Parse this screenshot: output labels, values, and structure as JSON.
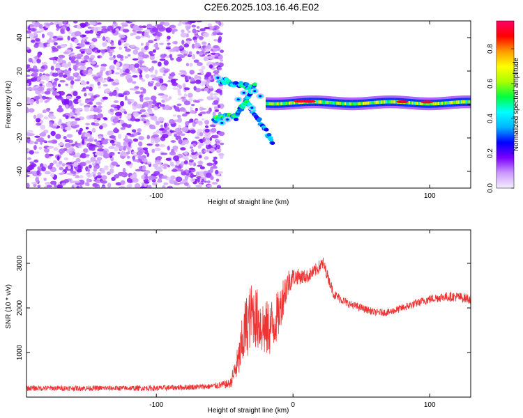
{
  "title": "C2E6.2025.103.16.46.E02",
  "chart_data": [
    {
      "type": "heatmap",
      "xlabel": "Height of straight line (km)",
      "ylabel": "Frequency (Hz)",
      "xlim": [
        -195,
        130
      ],
      "ylim": [
        -50,
        50
      ],
      "xticks": [
        -100,
        0,
        100
      ],
      "xtick_labels": [
        "-100",
        "",
        "100"
      ],
      "yticks": [
        -40,
        -20,
        0,
        20,
        40
      ],
      "ytick_labels": [
        "-40",
        "-20",
        "0",
        "20",
        "40"
      ],
      "colorbar": {
        "label": "Normalized spectral amplitude",
        "range": [
          0,
          0.96
        ],
        "ticks": [
          0,
          0.2,
          0.4,
          0.6,
          0.8
        ],
        "tick_labels": [
          "0.0",
          "0.2",
          "0.4",
          "0.6",
          "0.8"
        ],
        "colormap": [
          "#f4eeff",
          "#cc99ff",
          "#7a00ff",
          "#0000ff",
          "#00b4ff",
          "#00ffff",
          "#00ff40",
          "#aaff00",
          "#ffff00",
          "#ff9900",
          "#ff0000",
          "#ff0066"
        ]
      },
      "regions": [
        {
          "name": "noise",
          "x": [
            -195,
            -52
          ],
          "y": [
            -50,
            50
          ],
          "amplitude": 0.1
        },
        {
          "name": "transition",
          "x": [
            -55,
            -15
          ],
          "y": [
            -25,
            18
          ],
          "amplitude": 0.3
        },
        {
          "name": "band",
          "x": [
            -10,
            130
          ],
          "y": [
            -2,
            3
          ],
          "amplitude": 0.55
        }
      ],
      "grid": false
    },
    {
      "type": "line",
      "xlabel": "Height of straight line (km)",
      "ylabel": "SNR (10 * v/v)",
      "xlim": [
        -195,
        130
      ],
      "ylim": [
        0,
        3750
      ],
      "xticks": [
        -100,
        0,
        100
      ],
      "xtick_labels": [
        "-100",
        "0",
        "100"
      ],
      "yticks": [
        1000,
        2000,
        3000
      ],
      "ytick_labels": [
        "1000",
        "2000",
        "3000"
      ],
      "color": "#ee3333",
      "series": [
        {
          "x": [
            -195,
            -150,
            -100,
            -60,
            -46,
            -40,
            -35,
            -30,
            -25,
            -20,
            -15,
            -10,
            -7,
            -3,
            0,
            5,
            10,
            15,
            20,
            22,
            25,
            30,
            40,
            50,
            60,
            70,
            80,
            90,
            100,
            110,
            120,
            130
          ],
          "y": [
            200,
            200,
            200,
            240,
            300,
            800,
            1500,
            1900,
            1700,
            1500,
            1600,
            1900,
            2300,
            2600,
            2700,
            2700,
            2700,
            2800,
            2950,
            3000,
            2750,
            2300,
            2100,
            2000,
            1900,
            1900,
            2000,
            2100,
            2200,
            2250,
            2250,
            2200
          ],
          "spread": [
            120,
            120,
            120,
            130,
            200,
            800,
            1500,
            1400,
            1400,
            1300,
            1300,
            1000,
            900,
            600,
            400,
            350,
            300,
            300,
            300,
            300,
            250,
            220,
            180,
            170,
            160,
            160,
            170,
            180,
            200,
            210,
            220,
            220
          ]
        }
      ],
      "grid": false
    }
  ]
}
